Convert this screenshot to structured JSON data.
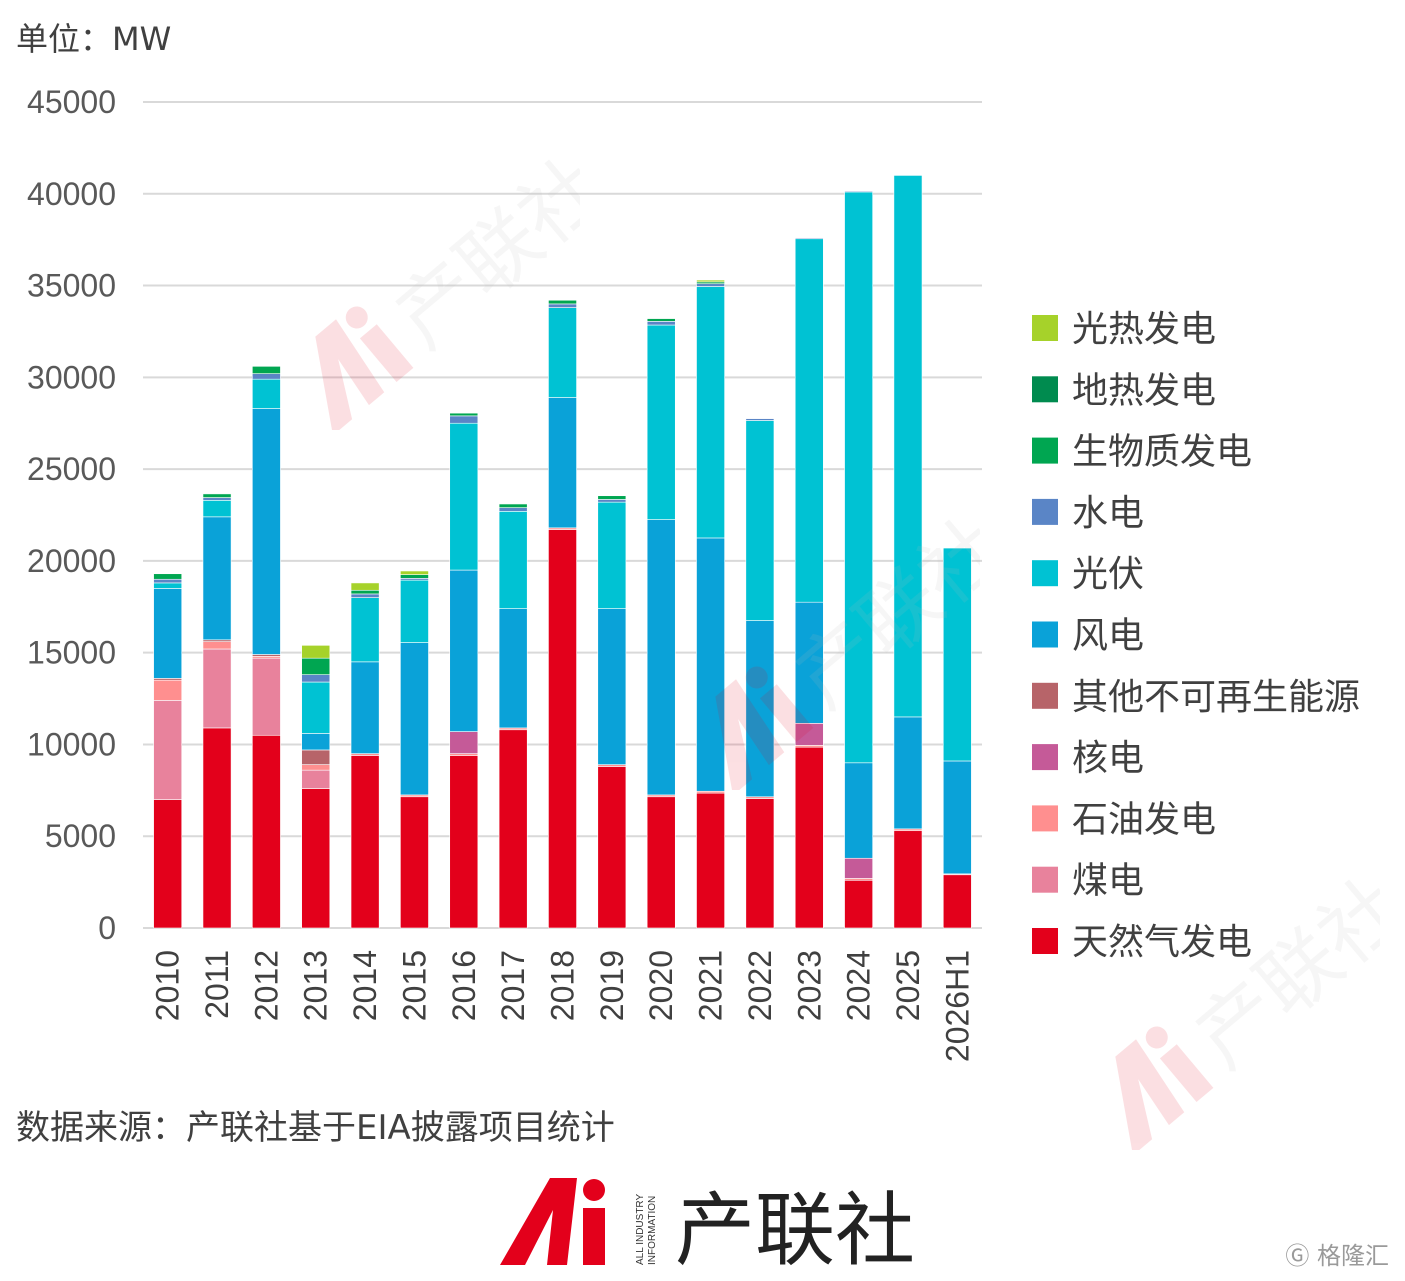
{
  "unit_label": "单位：MW",
  "source_note": "数据来源：产联社基于EIA披露项目统计",
  "brand": {
    "name": "产联社",
    "mark": "Ai",
    "tagline": "ALL INDUSTRY INFORMATION"
  },
  "corner_logo": "格隆汇",
  "colors": {
    "天然气发电": "#e3001b",
    "煤电": "#e8829c",
    "石油发电": "#ff8f8f",
    "核电": "#c55a98",
    "其他不可再生能源": "#b76469",
    "风电": "#0aa2d8",
    "光伏": "#00c2d3",
    "水电": "#5a85c6",
    "生物质发电": "#00a651",
    "地热发电": "#008b4f",
    "光热发电": "#a6d22a"
  },
  "chart_data": {
    "type": "bar",
    "stacked": true,
    "categories": [
      "2010",
      "2011",
      "2012",
      "2013",
      "2014",
      "2015",
      "2016",
      "2017",
      "2018",
      "2019",
      "2020",
      "2021",
      "2022",
      "2023",
      "2024",
      "2025",
      "2026H1"
    ],
    "ylim": [
      0,
      45000
    ],
    "yticks": [
      0,
      5000,
      10000,
      15000,
      20000,
      25000,
      30000,
      35000,
      40000,
      45000
    ],
    "grid": true,
    "legend_position": "right",
    "legend_order": [
      "光热发电",
      "地热发电",
      "生物质发电",
      "水电",
      "光伏",
      "风电",
      "其他不可再生能源",
      "核电",
      "石油发电",
      "煤电",
      "天然气发电"
    ],
    "series": [
      {
        "name": "天然气发电",
        "values": [
          7000,
          10900,
          10500,
          7600,
          9400,
          7150,
          9400,
          10800,
          21700,
          8800,
          7150,
          7350,
          7050,
          9850,
          2600,
          5300,
          2900
        ]
      },
      {
        "name": "煤电",
        "values": [
          5400,
          4300,
          4200,
          1000,
          0,
          0,
          0,
          0,
          0,
          0,
          0,
          0,
          0,
          0,
          0,
          0,
          0
        ]
      },
      {
        "name": "石油发电",
        "values": [
          1100,
          400,
          100,
          300,
          100,
          100,
          100,
          100,
          100,
          100,
          100,
          100,
          100,
          100,
          100,
          100,
          50
        ]
      },
      {
        "name": "核电",
        "values": [
          0,
          0,
          0,
          0,
          0,
          0,
          1200,
          0,
          0,
          0,
          0,
          0,
          0,
          1200,
          1100,
          0,
          0
        ]
      },
      {
        "name": "其他不可再生能源",
        "values": [
          100,
          100,
          100,
          800,
          0,
          0,
          0,
          0,
          0,
          0,
          0,
          0,
          0,
          0,
          0,
          0,
          0
        ]
      },
      {
        "name": "风电",
        "values": [
          4900,
          6700,
          13400,
          900,
          5000,
          8300,
          8800,
          6500,
          7100,
          8500,
          15000,
          13800,
          9600,
          6600,
          5200,
          6100,
          6150
        ]
      },
      {
        "name": "光伏",
        "values": [
          300,
          900,
          1600,
          2800,
          3500,
          3400,
          8000,
          5300,
          4900,
          5800,
          10600,
          13700,
          10900,
          19800,
          31100,
          29500,
          11600
        ]
      },
      {
        "name": "水电",
        "values": [
          200,
          150,
          300,
          400,
          200,
          100,
          400,
          200,
          200,
          150,
          200,
          150,
          100,
          50,
          50,
          0,
          0
        ]
      },
      {
        "name": "生物质发电",
        "values": [
          300,
          200,
          400,
          900,
          200,
          200,
          150,
          200,
          200,
          200,
          150,
          100,
          0,
          0,
          0,
          0,
          0
        ]
      },
      {
        "name": "地热发电",
        "values": [
          0,
          0,
          0,
          0,
          0,
          0,
          0,
          0,
          0,
          0,
          0,
          0,
          0,
          0,
          0,
          0,
          0
        ]
      },
      {
        "name": "光热发电",
        "values": [
          0,
          0,
          0,
          700,
          400,
          200,
          0,
          0,
          0,
          0,
          0,
          100,
          0,
          0,
          0,
          0,
          0
        ]
      }
    ]
  }
}
